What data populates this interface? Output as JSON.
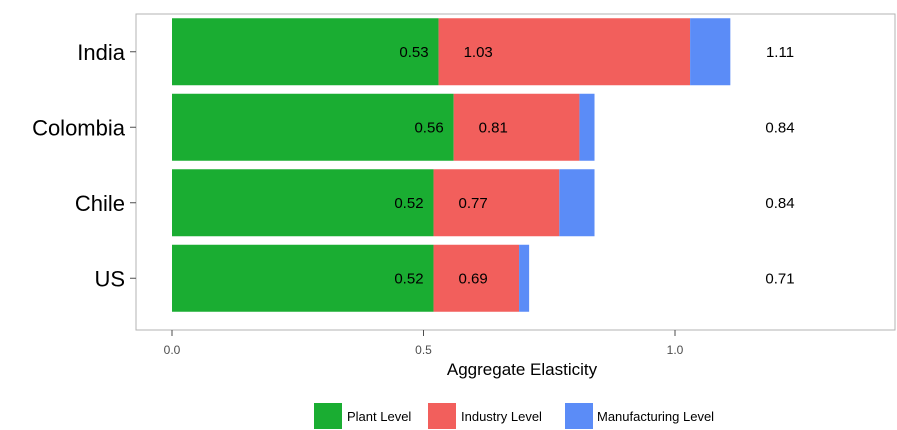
{
  "chart_data": {
    "type": "bar",
    "orientation": "horizontal",
    "stacked": true,
    "categories": [
      "India",
      "Colombia",
      "Chile",
      "US"
    ],
    "series": [
      {
        "name": "Plant Level",
        "color": "#1aad32",
        "values": [
          0.53,
          0.56,
          0.52,
          0.52
        ]
      },
      {
        "name": "Industry Level",
        "color": "#f25f5c",
        "values": [
          0.5,
          0.25,
          0.25,
          0.17
        ]
      },
      {
        "name": "Manufacturing Level",
        "color": "#5b8cf7",
        "values": [
          0.08,
          0.03,
          0.07,
          0.02
        ]
      }
    ],
    "cumulative_labels": {
      "plant": [
        "0.53",
        "0.56",
        "0.52",
        "0.52"
      ],
      "industry": [
        "1.03",
        "0.81",
        "0.77",
        "0.69"
      ],
      "total": [
        "1.11",
        "0.84",
        "0.84",
        "0.71"
      ]
    },
    "xlabel": "Aggregate Elasticity",
    "xlim": [
      0,
      1.38
    ],
    "xticks": [
      0.0,
      0.5,
      1.0
    ],
    "xtick_labels": [
      "0.0",
      "0.5",
      "1.0"
    ],
    "grid": false,
    "legend_position": "bottom"
  }
}
